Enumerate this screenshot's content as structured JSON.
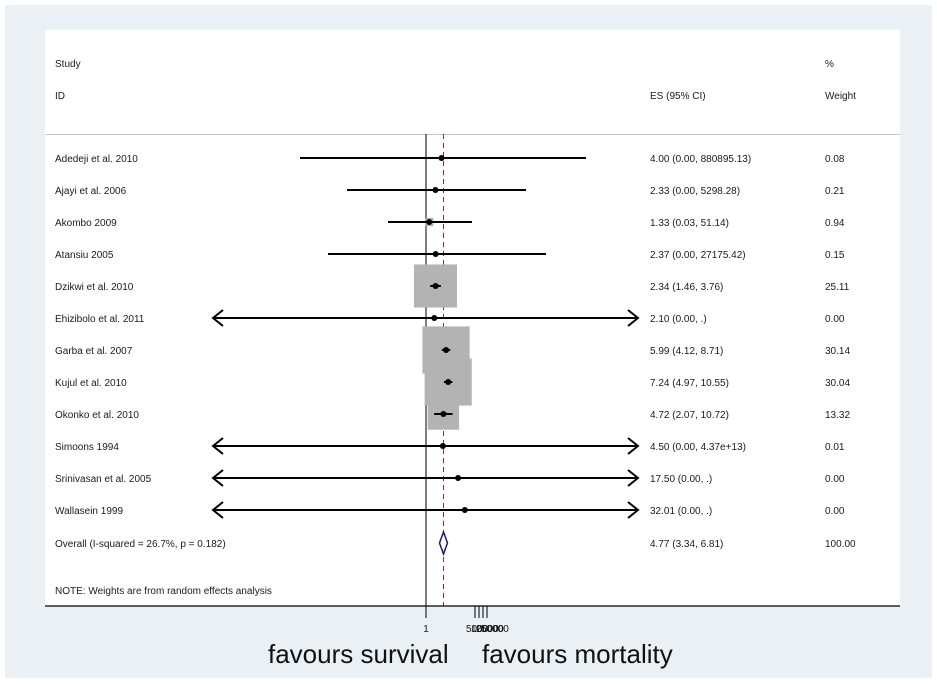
{
  "chart_data": {
    "type": "forest",
    "scale": "log",
    "headers": {
      "study_line1": "Study",
      "study_line2": "ID",
      "es": "ES (95% CI)",
      "weight_line1": "%",
      "weight_line2": "Weight"
    },
    "studies": [
      {
        "id": "Adedeji et al. 2010",
        "es": 4.0,
        "lo": 0.0,
        "hi": 880895.13,
        "es_text": "4.00 (0.00, 880895.13)",
        "weight": 0.08,
        "weight_text": "0.08",
        "arrow_left": false,
        "arrow_right": false
      },
      {
        "id": "Ajayi et al. 2006",
        "es": 2.33,
        "lo": 0.0,
        "hi": 5298.28,
        "es_text": "2.33 (0.00, 5298.28)",
        "weight": 0.21,
        "weight_text": "0.21",
        "arrow_left": false,
        "arrow_right": false
      },
      {
        "id": "Akombo 2009",
        "es": 1.33,
        "lo": 0.03,
        "hi": 51.14,
        "es_text": "1.33 (0.03, 51.14)",
        "weight": 0.94,
        "weight_text": "0.94",
        "arrow_left": false,
        "arrow_right": false
      },
      {
        "id": "Atansiu 2005",
        "es": 2.37,
        "lo": 0.0,
        "hi": 27175.42,
        "es_text": "2.37 (0.00, 27175.42)",
        "weight": 0.15,
        "weight_text": "0.15",
        "arrow_left": false,
        "arrow_right": false
      },
      {
        "id": "Dzikwi et al. 2010",
        "es": 2.34,
        "lo": 1.46,
        "hi": 3.76,
        "es_text": "2.34 (1.46, 3.76)",
        "weight": 25.11,
        "weight_text": "25.11",
        "arrow_left": false,
        "arrow_right": false
      },
      {
        "id": "Ehizibolo et al. 2011",
        "es": 2.1,
        "lo": 0.0,
        "hi": null,
        "es_text": "2.10 (0.00, .)",
        "weight": 0.0,
        "weight_text": "0.00",
        "arrow_left": true,
        "arrow_right": true
      },
      {
        "id": "Garba et al. 2007",
        "es": 5.99,
        "lo": 4.12,
        "hi": 8.71,
        "es_text": "5.99 (4.12, 8.71)",
        "weight": 30.14,
        "weight_text": "30.14",
        "arrow_left": false,
        "arrow_right": false
      },
      {
        "id": "Kujul et al. 2010",
        "es": 7.24,
        "lo": 4.97,
        "hi": 10.55,
        "es_text": "7.24 (4.97, 10.55)",
        "weight": 30.04,
        "weight_text": "30.04",
        "arrow_left": false,
        "arrow_right": false
      },
      {
        "id": "Okonko et al. 2010",
        "es": 4.72,
        "lo": 2.07,
        "hi": 10.72,
        "es_text": "4.72 (2.07, 10.72)",
        "weight": 13.32,
        "weight_text": "13.32",
        "arrow_left": false,
        "arrow_right": false
      },
      {
        "id": "Simoons 1994",
        "es": 4.5,
        "lo": 0.0,
        "hi": 43700000000000.0,
        "es_text": "4.50 (0.00, 4.37e+13)",
        "weight": 0.01,
        "weight_text": "0.01",
        "arrow_left": true,
        "arrow_right": true
      },
      {
        "id": "Srinivasan et al. 2005",
        "es": 17.5,
        "lo": 0.0,
        "hi": null,
        "es_text": "17.50 (0.00, .)",
        "weight": 0.0,
        "weight_text": "0.00",
        "arrow_left": true,
        "arrow_right": true
      },
      {
        "id": "Wallasein 1999",
        "es": 32.01,
        "lo": 0.0,
        "hi": null,
        "es_text": "32.01 (0.00, .)",
        "weight": 0.0,
        "weight_text": "0.00",
        "arrow_left": true,
        "arrow_right": true
      }
    ],
    "overall": {
      "label": "Overall  (I-squared = 26.7%, p = 0.182)",
      "es": 4.77,
      "lo": 3.34,
      "hi": 6.81,
      "es_text": "4.77 (3.34, 6.81)",
      "weight_text": "100.00"
    },
    "note": "NOTE: Weights are from random effects analysis",
    "x_ticks": [
      "1",
      "5000",
      "10000",
      "25000",
      "50000"
    ],
    "null_value": 1,
    "xlabel_left": "favours survival",
    "xlabel_right": "favours mortality",
    "colors": {
      "box": "#b3b3b3",
      "line": "#000000",
      "overall_line": "#8b2b2b",
      "diamond": "#1a1a7a",
      "background": "#eaf0f3"
    }
  }
}
